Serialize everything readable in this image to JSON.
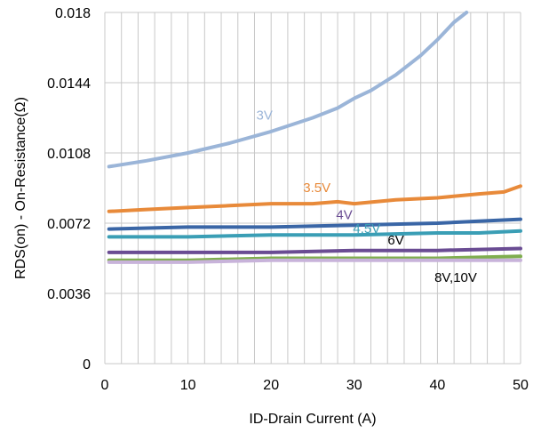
{
  "chart_data": {
    "type": "line",
    "title": "",
    "xlabel": "ID-Drain Current (A)",
    "ylabel": "RDS(on) - On-Resistance(Ω)",
    "xlim": [
      0,
      50
    ],
    "ylim": [
      0,
      0.018
    ],
    "xticks": [
      0,
      10,
      20,
      30,
      40,
      50
    ],
    "yticks": [
      0,
      0.0036,
      0.0072,
      0.0108,
      0.0144,
      0.018
    ],
    "grid": "vertical-minor-and-horizontal-major",
    "legend": "none",
    "series": [
      {
        "name": "3V",
        "color": "#9BB5D8",
        "x": [
          0.5,
          5,
          10,
          15,
          20,
          25,
          28,
          30,
          32,
          35,
          38,
          40,
          42,
          43.5
        ],
        "y": [
          0.0101,
          0.0104,
          0.0108,
          0.0113,
          0.0119,
          0.0126,
          0.0131,
          0.0136,
          0.014,
          0.0148,
          0.0158,
          0.0166,
          0.0175,
          0.018
        ]
      },
      {
        "name": "3.5V",
        "color": "#E88A3A",
        "x": [
          0.5,
          5,
          10,
          15,
          20,
          25,
          28,
          30,
          35,
          40,
          45,
          48,
          50
        ],
        "y": [
          0.0078,
          0.0079,
          0.008,
          0.0081,
          0.0082,
          0.0082,
          0.0083,
          0.0082,
          0.0084,
          0.0085,
          0.0087,
          0.0088,
          0.0091
        ]
      },
      {
        "name": "4V",
        "color": "#3A66A6",
        "x": [
          0.5,
          10,
          20,
          30,
          40,
          45,
          50
        ],
        "y": [
          0.0069,
          0.007,
          0.007,
          0.0071,
          0.0072,
          0.0073,
          0.0074
        ]
      },
      {
        "name": "4.5V",
        "color": "#3A9EB5",
        "x": [
          0.5,
          10,
          20,
          30,
          40,
          45,
          50
        ],
        "y": [
          0.0065,
          0.0065,
          0.0066,
          0.0066,
          0.0067,
          0.0067,
          0.0068
        ]
      },
      {
        "name": "6V",
        "color": "#6A4C93",
        "x": [
          0.5,
          10,
          20,
          30,
          40,
          50
        ],
        "y": [
          0.0057,
          0.0057,
          0.0057,
          0.0058,
          0.0058,
          0.0059
        ]
      },
      {
        "name": "8V,10V",
        "color": "#7FAE4E",
        "x": [
          0.5,
          10,
          20,
          30,
          40,
          50
        ],
        "y": [
          0.0053,
          0.0053,
          0.0054,
          0.0054,
          0.0054,
          0.0055
        ]
      },
      {
        "name": "",
        "color": "#C8B3DA",
        "x": [
          0.5,
          10,
          20,
          30,
          40,
          50
        ],
        "y": [
          0.0052,
          0.0052,
          0.0053,
          0.0053,
          0.0053,
          0.0053
        ]
      }
    ],
    "labels": [
      {
        "text": "3V",
        "color": "#9BB5D8",
        "x": 19.2,
        "y": 0.0125
      },
      {
        "text": "3.5V",
        "color": "#E88A3A",
        "x": 25.5,
        "y": 0.0088
      },
      {
        "text": "4V",
        "color": "#6A4C93",
        "x": 28.8,
        "y": 0.0074
      },
      {
        "text": "4.5V",
        "color": "#3A9EB5",
        "x": 31.5,
        "y": 0.0067
      },
      {
        "text": "6V",
        "color": "#000000",
        "x": 35,
        "y": 0.0061
      },
      {
        "text": "8V,10V",
        "color": "#000000",
        "x": 42.2,
        "y": 0.0042
      }
    ]
  }
}
